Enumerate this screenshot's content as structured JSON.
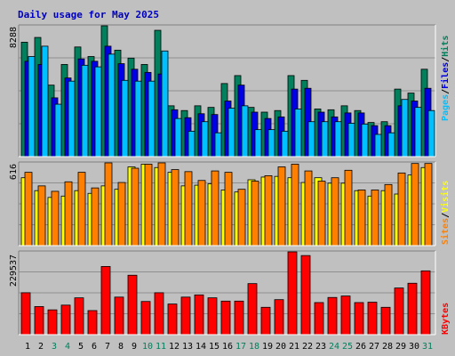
{
  "colors": {
    "outer_bg": "#c0c0c0",
    "plot_bg": "#c0c0c0",
    "grid": "#8f8f8f",
    "title": "#0000c0",
    "hits": "#00805c",
    "files": "#0000e6",
    "pages": "#00c0ff",
    "visits": "#ffff00",
    "sites": "#ff8000",
    "kbytes": "#ff0000",
    "weekday": "#000000",
    "weekend": "#00805c"
  },
  "chart_data": [
    {
      "type": "bar",
      "title": "Daily usage for May 2025",
      "categories": [
        "1",
        "2",
        "3",
        "4",
        "5",
        "6",
        "7",
        "8",
        "9",
        "10",
        "11",
        "12",
        "13",
        "14",
        "15",
        "16",
        "17",
        "18",
        "19",
        "20",
        "21",
        "22",
        "23",
        "24",
        "25",
        "26",
        "27",
        "28",
        "29",
        "30",
        "31"
      ],
      "weekend_days": [
        "3",
        "4",
        "10",
        "11",
        "17",
        "18",
        "24",
        "25",
        "31"
      ],
      "ymax_label": "8288",
      "ylim": [
        0,
        8288
      ],
      "grid": true,
      "legend": [
        {
          "label": "Hits",
          "color_key": "hits"
        },
        {
          "label": "/",
          "color_key": "weekday"
        },
        {
          "label": "Files",
          "color_key": "files"
        },
        {
          "label": "/",
          "color_key": "weekday"
        },
        {
          "label": "Pages",
          "color_key": "pages"
        }
      ],
      "series": [
        {
          "name": "Hits",
          "color_key": "hits",
          "values": [
            7200,
            7500,
            4500,
            5800,
            6900,
            6300,
            8300,
            6700,
            6200,
            5800,
            7950,
            3200,
            2900,
            3200,
            3100,
            4600,
            5100,
            3100,
            2800,
            2900,
            5100,
            4800,
            3000,
            2950,
            3200,
            2900,
            2150,
            2200,
            4250,
            4000,
            5500
          ]
        },
        {
          "name": "Files",
          "color_key": "files",
          "values": [
            6000,
            5800,
            3700,
            4950,
            6150,
            6000,
            6950,
            5850,
            5500,
            5300,
            5200,
            2950,
            2450,
            2700,
            2650,
            3500,
            4500,
            2800,
            2400,
            2500,
            4250,
            4300,
            2800,
            2500,
            2750,
            2750,
            1950,
            1950,
            3200,
            3500,
            4300
          ]
        },
        {
          "name": "Pages",
          "color_key": "pages",
          "values": [
            6300,
            6950,
            3300,
            4750,
            5750,
            5650,
            6450,
            4800,
            4750,
            4750,
            6650,
            2400,
            1600,
            2200,
            1500,
            3050,
            3200,
            1700,
            1700,
            1600,
            3000,
            2200,
            2200,
            2200,
            2100,
            2050,
            1400,
            1500,
            3600,
            3100,
            2900
          ]
        }
      ]
    },
    {
      "type": "bar",
      "categories": [
        "1",
        "2",
        "3",
        "4",
        "5",
        "6",
        "7",
        "8",
        "9",
        "10",
        "11",
        "12",
        "13",
        "14",
        "15",
        "16",
        "17",
        "18",
        "19",
        "20",
        "21",
        "22",
        "23",
        "24",
        "25",
        "26",
        "27",
        "28",
        "29",
        "30",
        "31"
      ],
      "ymax_label": "616",
      "ylim": [
        0,
        616
      ],
      "grid": true,
      "legend": [
        {
          "label": "Visits",
          "color_key": "visits"
        },
        {
          "label": "/",
          "color_key": "weekday"
        },
        {
          "label": "Sites",
          "color_key": "sites"
        }
      ],
      "series": [
        {
          "name": "Visits",
          "color_key": "visits",
          "values": [
            500,
            405,
            355,
            365,
            405,
            385,
            440,
            415,
            580,
            600,
            575,
            540,
            440,
            445,
            455,
            410,
            395,
            485,
            505,
            510,
            500,
            465,
            500,
            460,
            460,
            405,
            365,
            405,
            380,
            520,
            575
          ]
        },
        {
          "name": "Sites",
          "color_key": "sites",
          "values": [
            540,
            440,
            400,
            470,
            540,
            425,
            630,
            465,
            570,
            600,
            630,
            560,
            545,
            480,
            550,
            540,
            415,
            475,
            515,
            580,
            600,
            550,
            475,
            500,
            555,
            410,
            410,
            450,
            535,
            605,
            605
          ]
        }
      ]
    },
    {
      "type": "bar",
      "categories": [
        "1",
        "2",
        "3",
        "4",
        "5",
        "6",
        "7",
        "8",
        "9",
        "10",
        "11",
        "12",
        "13",
        "14",
        "15",
        "16",
        "17",
        "18",
        "19",
        "20",
        "21",
        "22",
        "23",
        "24",
        "25",
        "26",
        "27",
        "28",
        "29",
        "30",
        "31"
      ],
      "ymax_label": "229537",
      "ylim": [
        0,
        229537
      ],
      "grid": true,
      "legend": [
        {
          "label": "KBytes",
          "color_key": "kbytes"
        }
      ],
      "series": [
        {
          "name": "KBytes",
          "color_key": "kbytes",
          "values": [
            115000,
            77000,
            68000,
            81000,
            101000,
            66000,
            187000,
            103000,
            163000,
            91000,
            115000,
            84000,
            103000,
            109000,
            101000,
            92000,
            92000,
            140000,
            75000,
            96000,
            232000,
            217000,
            88000,
            102000,
            106000,
            88000,
            89000,
            75000,
            128000,
            141000,
            175000
          ]
        }
      ]
    }
  ]
}
